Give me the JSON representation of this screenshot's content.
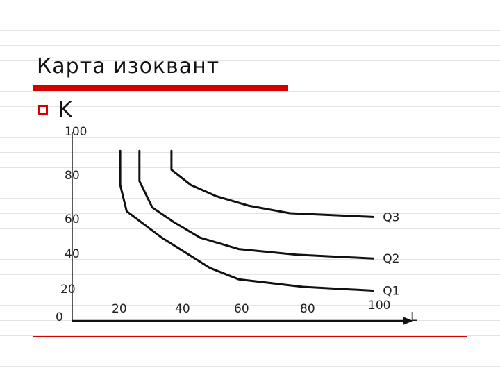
{
  "slide": {
    "title": "Карта изоквант",
    "bullet": "K"
  },
  "chart_data": {
    "type": "line",
    "title": "Карта изоквант",
    "xlabel": "L",
    "ylabel": "K",
    "origin_label": "0",
    "x_ticks": [
      "20",
      "40",
      "60",
      "80",
      "100"
    ],
    "y_ticks": [
      "100",
      "80",
      "60",
      "40",
      "20"
    ],
    "xlim": [
      0,
      100
    ],
    "ylim": [
      0,
      100
    ],
    "grid": false,
    "series": [
      {
        "name": "Q1",
        "points": [
          [
            15,
            90
          ],
          [
            15,
            72
          ],
          [
            17,
            58
          ],
          [
            28,
            44
          ],
          [
            43,
            28
          ],
          [
            52,
            22
          ],
          [
            72,
            18
          ],
          [
            94,
            16
          ]
        ]
      },
      {
        "name": "Q2",
        "points": [
          [
            21,
            90
          ],
          [
            21,
            74
          ],
          [
            25,
            60
          ],
          [
            32,
            52
          ],
          [
            40,
            44
          ],
          [
            52,
            38
          ],
          [
            70,
            35
          ],
          [
            94,
            33
          ]
        ]
      },
      {
        "name": "Q3",
        "points": [
          [
            31,
            90
          ],
          [
            31,
            80
          ],
          [
            37,
            72
          ],
          [
            45,
            66
          ],
          [
            55,
            61
          ],
          [
            68,
            57
          ],
          [
            94,
            55
          ]
        ]
      }
    ],
    "colors": {
      "curves": "#111111",
      "accent": "#d50000"
    }
  }
}
